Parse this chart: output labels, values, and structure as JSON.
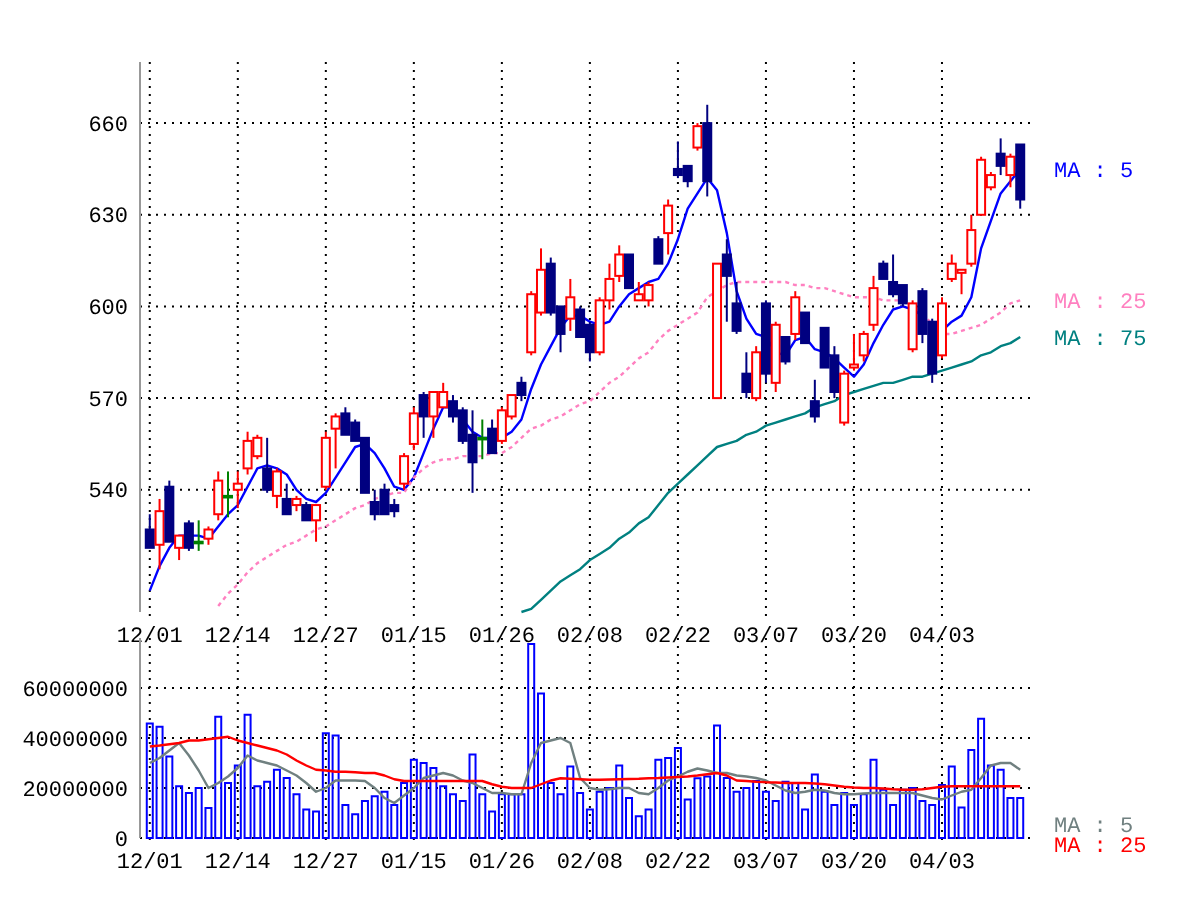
{
  "chart_data": [
    {
      "type": "candlestick",
      "categories": [
        "12/01",
        null,
        null,
        null,
        null,
        null,
        null,
        null,
        null,
        "12/14",
        null,
        null,
        null,
        null,
        null,
        null,
        null,
        null,
        "12/27",
        null,
        null,
        null,
        null,
        null,
        null,
        null,
        null,
        "01/15",
        null,
        null,
        null,
        null,
        null,
        null,
        null,
        null,
        "01/26",
        null,
        null,
        null,
        null,
        null,
        null,
        null,
        null,
        "02/08",
        null,
        null,
        null,
        null,
        null,
        null,
        null,
        null,
        "02/22",
        null,
        null,
        null,
        null,
        null,
        null,
        null,
        null,
        "03/07",
        null,
        null,
        null,
        null,
        null,
        null,
        null,
        null,
        "03/20",
        null,
        null,
        null,
        null,
        null,
        null,
        null,
        null,
        "04/03",
        null,
        null,
        null,
        null,
        null,
        null,
        null,
        null
      ],
      "ylim": [
        500,
        680
      ],
      "yticks": [
        540,
        570,
        600,
        630,
        660
      ],
      "grid": true,
      "ohlc": [
        [
          527,
          532,
          521,
          521
        ],
        [
          522,
          537,
          514,
          533
        ],
        [
          541,
          543,
          523,
          523
        ],
        [
          521,
          525,
          517,
          525
        ],
        [
          529,
          530,
          520,
          521
        ],
        [
          523,
          530,
          520,
          523
        ],
        [
          524,
          528,
          522,
          527
        ],
        [
          532,
          546,
          530,
          543
        ],
        [
          538,
          546,
          531,
          538
        ],
        [
          540,
          546,
          534,
          542
        ],
        [
          547,
          559,
          545,
          556
        ],
        [
          551,
          558,
          550,
          557
        ],
        [
          547,
          557,
          539,
          540
        ],
        [
          538,
          547,
          534,
          546
        ],
        [
          537,
          542,
          532,
          532
        ],
        [
          535,
          538,
          533,
          537
        ],
        [
          535,
          536,
          530,
          530
        ],
        [
          530,
          535,
          523,
          535
        ],
        [
          541,
          559,
          540,
          557
        ],
        [
          560,
          565,
          547,
          564
        ],
        [
          565,
          567,
          558,
          558
        ],
        [
          562,
          563,
          556,
          556
        ],
        [
          557,
          557,
          539,
          539
        ],
        [
          536,
          540,
          530,
          532
        ],
        [
          540,
          542,
          532,
          532
        ],
        [
          535,
          537,
          531,
          533
        ],
        [
          542,
          552,
          540,
          551
        ],
        [
          555,
          567,
          553,
          565
        ],
        [
          571,
          572,
          557,
          564
        ],
        [
          564,
          572,
          557,
          572
        ],
        [
          567,
          575,
          567,
          572
        ],
        [
          569,
          571,
          562,
          564
        ],
        [
          566,
          567,
          555,
          556
        ],
        [
          558,
          566,
          539,
          549
        ],
        [
          557,
          563,
          550,
          557
        ],
        [
          560,
          563,
          552,
          552
        ],
        [
          556,
          567,
          555,
          566
        ],
        [
          564,
          571,
          563,
          571
        ],
        [
          575,
          577,
          569,
          571
        ],
        [
          585,
          605,
          584,
          604
        ],
        [
          598,
          619,
          597,
          612
        ],
        [
          614,
          616,
          597,
          598
        ],
        [
          600,
          600,
          585,
          591
        ],
        [
          596,
          609,
          592,
          603
        ],
        [
          599,
          600,
          590,
          590
        ],
        [
          594,
          595,
          582,
          585
        ],
        [
          585,
          603,
          584,
          602
        ],
        [
          602,
          614,
          599,
          609
        ],
        [
          610,
          620,
          608,
          617
        ],
        [
          617,
          617,
          606,
          606
        ],
        [
          602,
          608,
          602,
          604
        ],
        [
          602,
          608,
          600,
          607
        ],
        [
          622,
          623,
          614,
          614
        ],
        [
          624,
          635,
          617,
          633
        ],
        [
          645,
          654,
          642,
          643
        ],
        [
          646,
          646,
          639,
          641
        ],
        [
          652,
          660,
          651,
          659
        ],
        [
          660,
          666,
          636,
          641
        ],
        [
          570,
          614,
          570,
          614
        ],
        [
          617,
          622,
          595,
          610
        ],
        [
          601,
          608,
          591,
          592
        ],
        [
          578,
          585,
          570,
          572
        ],
        [
          570,
          587,
          569,
          585
        ],
        [
          601,
          602,
          575,
          578
        ],
        [
          575,
          595,
          572,
          594
        ],
        [
          590,
          590,
          581,
          582
        ],
        [
          591,
          605,
          589,
          603
        ],
        [
          598,
          598,
          588,
          588
        ],
        [
          569,
          576,
          562,
          564
        ],
        [
          593,
          593,
          580,
          580
        ],
        [
          584,
          587,
          570,
          572
        ],
        [
          562,
          579,
          561,
          578
        ],
        [
          580,
          591,
          579,
          581
        ],
        [
          584,
          592,
          582,
          591
        ],
        [
          594,
          610,
          592,
          606
        ],
        [
          614,
          615,
          609,
          609
        ],
        [
          608,
          617,
          603,
          604
        ],
        [
          607,
          607,
          600,
          601
        ],
        [
          586,
          602,
          585,
          601
        ],
        [
          605,
          606,
          588,
          591
        ],
        [
          595,
          596,
          575,
          578
        ],
        [
          584,
          603,
          583,
          601
        ],
        [
          609,
          617,
          608,
          614
        ],
        [
          611,
          612,
          604,
          612
        ],
        [
          614,
          630,
          613,
          625
        ],
        [
          630,
          649,
          630,
          648
        ],
        [
          639,
          644,
          638,
          643
        ],
        [
          650,
          655,
          643,
          646
        ],
        [
          643,
          650,
          639,
          649
        ],
        [
          653,
          653,
          632,
          635
        ]
      ],
      "colors": [
        "#000080",
        "#ff0000",
        "#000080",
        "#ff0000",
        "#000080",
        "#008000",
        "#ff0000",
        "#ff0000",
        "#008000",
        "#ff0000",
        "#ff0000",
        "#ff0000",
        "#000080",
        "#ff0000",
        "#000080",
        "#ff0000",
        "#000080",
        "#ff0000",
        "#ff0000",
        "#ff0000",
        "#000080",
        "#000080",
        "#000080",
        "#000080",
        "#000080",
        "#000080",
        "#ff0000",
        "#ff0000",
        "#000080",
        "#ff0000",
        "#ff0000",
        "#000080",
        "#000080",
        "#000080",
        "#008000",
        "#000080",
        "#ff0000",
        "#ff0000",
        "#000080",
        "#ff0000",
        "#ff0000",
        "#000080",
        "#000080",
        "#ff0000",
        "#000080",
        "#000080",
        "#ff0000",
        "#ff0000",
        "#ff0000",
        "#000080",
        "#ff0000",
        "#ff0000",
        "#000080",
        "#ff0000",
        "#000080",
        "#000080",
        "#ff0000",
        "#000080",
        "#ff0000",
        "#000080",
        "#000080",
        "#000080",
        "#ff0000",
        "#000080",
        "#ff0000",
        "#000080",
        "#ff0000",
        "#000080",
        "#000080",
        "#000080",
        "#000080",
        "#ff0000",
        "#ff0000",
        "#ff0000",
        "#ff0000",
        "#000080",
        "#000080",
        "#000080",
        "#ff0000",
        "#000080",
        "#000080",
        "#ff0000",
        "#ff0000",
        "#ff0000",
        "#ff0000",
        "#ff0000",
        "#ff0000",
        "#000080",
        "#ff0000",
        "#000080"
      ],
      "series": [
        {
          "type": "line",
          "name": "MA : 5",
          "color": "#0000ff",
          "line_style": "solid",
          "values": [
            507,
            515,
            521,
            525,
            525,
            525,
            524,
            528,
            532,
            535,
            541,
            547,
            548,
            547,
            545,
            540,
            537,
            536,
            539,
            544,
            549,
            554,
            555,
            552,
            547,
            541,
            540,
            544,
            552,
            560,
            567,
            567,
            563,
            559,
            557,
            557,
            557,
            559,
            563,
            573,
            581,
            587,
            593,
            597,
            597,
            595,
            594,
            595,
            600,
            604,
            606,
            608,
            609,
            614,
            622,
            632,
            637,
            642,
            638,
            624,
            605,
            596,
            591,
            590,
            585,
            584,
            589,
            590,
            586,
            585,
            583,
            580,
            577,
            581,
            588,
            594,
            599,
            600,
            599,
            597,
            null,
            592,
            595,
            597,
            603,
            619,
            628,
            637,
            641,
            645
          ]
        },
        {
          "type": "line",
          "name": "MA : 25",
          "color": "#ff80c0",
          "line_style": "dotted",
          "values": [
            null,
            null,
            null,
            null,
            null,
            null,
            null,
            502,
            506,
            509,
            513,
            516,
            518,
            520,
            522,
            523,
            525,
            527,
            528,
            530,
            532,
            534,
            535,
            537,
            538,
            539,
            539,
            544,
            547,
            549,
            550,
            550,
            551,
            551,
            551,
            552,
            552,
            554,
            557,
            560,
            561,
            563,
            564,
            566,
            568,
            569,
            572,
            575,
            577,
            580,
            583,
            585,
            589,
            592,
            594,
            596,
            598,
            603,
            605,
            607,
            608,
            608,
            608,
            608,
            608,
            608,
            607,
            607,
            606,
            606,
            605,
            604,
            603,
            603,
            603,
            602,
            602,
            602,
            600,
            598,
            594,
            591,
            591,
            592,
            593,
            594,
            596,
            598,
            601,
            602
          ]
        },
        {
          "type": "line",
          "name": "MA : 75",
          "color": "#008080",
          "line_style": "solid",
          "values": [
            null,
            null,
            null,
            null,
            null,
            null,
            null,
            null,
            null,
            null,
            null,
            null,
            null,
            null,
            null,
            null,
            null,
            null,
            null,
            null,
            null,
            null,
            null,
            null,
            null,
            null,
            null,
            null,
            null,
            null,
            null,
            null,
            null,
            null,
            null,
            null,
            null,
            null,
            500,
            501,
            504,
            507,
            510,
            512,
            514,
            517,
            519,
            521,
            524,
            526,
            529,
            531,
            535,
            539,
            542,
            545,
            548,
            551,
            554,
            555,
            556,
            558,
            559,
            561,
            562,
            563,
            564,
            565,
            567,
            568,
            569,
            571,
            572,
            573,
            574,
            575,
            575,
            576,
            577,
            577,
            578,
            579,
            580,
            581,
            582,
            584,
            585,
            587,
            588,
            590
          ]
        }
      ]
    },
    {
      "type": "bar",
      "categories": [
        "12/01",
        null,
        null,
        null,
        null,
        null,
        null,
        null,
        null,
        "12/14",
        null,
        null,
        null,
        null,
        null,
        null,
        null,
        null,
        "12/27",
        null,
        null,
        null,
        null,
        null,
        null,
        null,
        null,
        "01/15",
        null,
        null,
        null,
        null,
        null,
        null,
        null,
        null,
        "01/26",
        null,
        null,
        null,
        null,
        null,
        null,
        null,
        null,
        "02/08",
        null,
        null,
        null,
        null,
        null,
        null,
        null,
        null,
        "02/22",
        null,
        null,
        null,
        null,
        null,
        null,
        null,
        null,
        "03/07",
        null,
        null,
        null,
        null,
        null,
        null,
        null,
        null,
        "03/20",
        null,
        null,
        null,
        null,
        null,
        null,
        null,
        null,
        "04/03",
        null,
        null,
        null,
        null,
        null,
        null,
        null,
        null
      ],
      "ylim": [
        0,
        80000000
      ],
      "yticks": [
        0,
        20000000,
        40000000,
        60000000
      ],
      "grid": true,
      "legend": "right",
      "series": [
        {
          "type": "bar",
          "color": "#0000ff",
          "values": [
            45800000,
            44500000,
            32600000,
            20700000,
            18000000,
            20000000,
            12000000,
            48500000,
            22000000,
            29000000,
            49300000,
            20700000,
            22500000,
            27300000,
            24000000,
            17500000,
            11400000,
            10600000,
            41900000,
            41000000,
            13200000,
            9500000,
            14800000,
            16700000,
            18500000,
            13200000,
            22000000,
            31300000,
            30000000,
            28000000,
            20700000,
            17500000,
            14800000,
            33400000,
            17500000,
            10600000,
            17500000,
            17500000,
            17500000,
            77600000,
            57800000,
            22000000,
            17500000,
            28600000,
            18000000,
            11400000,
            18500000,
            20000000,
            29000000,
            16000000,
            8700000,
            11400000,
            31300000,
            32000000,
            36000000,
            15400000,
            23900000,
            24600000,
            45000000,
            24000000,
            18500000,
            20000000,
            22800000,
            18500000,
            14800000,
            22500000,
            22000000,
            11400000,
            25400000,
            18500000,
            13200000,
            18000000,
            13200000,
            17500000,
            31300000,
            19300000,
            13200000,
            19300000,
            20000000,
            14800000,
            13200000,
            21200000,
            28600000,
            12200000,
            35200000,
            47700000,
            29000000,
            27300000,
            16000000,
            16000000
          ]
        },
        {
          "type": "line",
          "name": "MA : 5",
          "color": "#708080",
          "line_style": "solid",
          "values": [
            30000000,
            32000000,
            35000000,
            38000000,
            33000000,
            27000000,
            20000000,
            22000000,
            24600000,
            28000000,
            33000000,
            31000000,
            30000000,
            29000000,
            27000000,
            25000000,
            22000000,
            18500000,
            20000000,
            23000000,
            23000000,
            23000000,
            22800000,
            20000000,
            16000000,
            14000000,
            17000000,
            20000000,
            24000000,
            25000000,
            26000000,
            25000000,
            23000000,
            22000000,
            20000000,
            18000000,
            18000000,
            17500000,
            17500000,
            30000000,
            38000000,
            39000000,
            40000000,
            38000000,
            24000000,
            20000000,
            19300000,
            19500000,
            20000000,
            20000000,
            18000000,
            17500000,
            20000000,
            23000000,
            24600000,
            26500000,
            27800000,
            27000000,
            26000000,
            26000000,
            25000000,
            24600000,
            24000000,
            23000000,
            21000000,
            19000000,
            18000000,
            18500000,
            19300000,
            19000000,
            18000000,
            17500000,
            17500000,
            17800000,
            18000000,
            18000000,
            18000000,
            18000000,
            18000000,
            17000000,
            16000000,
            15400000,
            17000000,
            18500000,
            19300000,
            24000000,
            29000000,
            30000000,
            30000000,
            27300000
          ]
        },
        {
          "type": "line",
          "name": "MA : 25",
          "color": "#ff0000",
          "line_style": "solid",
          "values": [
            36600000,
            37000000,
            37500000,
            38000000,
            39000000,
            39000000,
            39500000,
            40000000,
            40500000,
            39000000,
            38000000,
            37000000,
            36000000,
            35000000,
            33400000,
            31000000,
            29000000,
            27300000,
            27000000,
            26500000,
            26500000,
            26300000,
            26000000,
            26000000,
            25000000,
            23500000,
            22800000,
            22800000,
            22800000,
            22800000,
            22800000,
            22800000,
            22800000,
            22800000,
            22800000,
            21500000,
            20500000,
            20000000,
            20000000,
            20000000,
            21500000,
            23000000,
            23900000,
            23700000,
            23500000,
            23300000,
            23300000,
            23400000,
            23500000,
            23600000,
            23700000,
            23900000,
            24000000,
            24200000,
            24400000,
            24600000,
            25000000,
            25500000,
            26000000,
            25000000,
            23000000,
            22800000,
            22500000,
            22300000,
            22200000,
            22000000,
            22000000,
            22000000,
            21800000,
            21500000,
            21000000,
            20500000,
            20200000,
            20000000,
            20000000,
            19800000,
            19500000,
            19300000,
            19300000,
            19500000,
            20000000,
            20500000,
            20700000,
            20700000,
            20700000,
            20700000,
            20700000,
            20700000,
            20700000,
            20700000
          ]
        }
      ]
    }
  ]
}
